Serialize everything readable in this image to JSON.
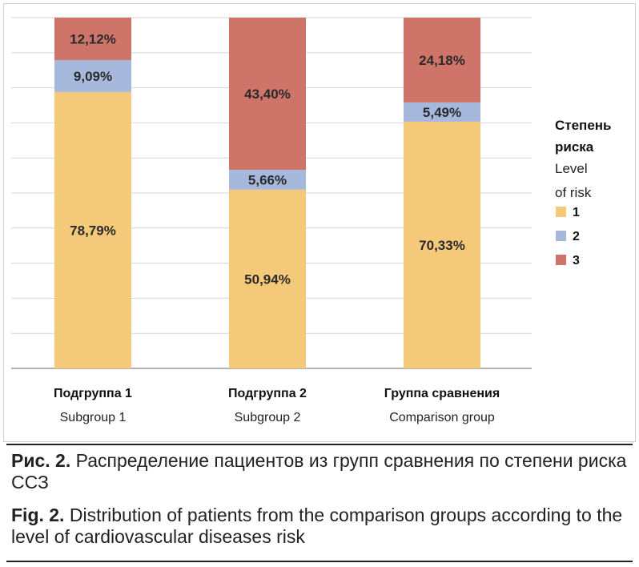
{
  "chart_data": {
    "type": "bar",
    "stacked": true,
    "categories_ru": [
      "Подгруппа 1",
      "Подгруппа 2",
      "Группа сравнения"
    ],
    "categories_en": [
      "Subgroup 1",
      "Subgroup 2",
      "Comparison group"
    ],
    "series": [
      {
        "name": "1",
        "color": "#f5c97a",
        "values": [
          78.79,
          50.94,
          70.33
        ],
        "labels": [
          "78,79%",
          "50,94%",
          "70,33%"
        ]
      },
      {
        "name": "2",
        "color": "#a6b9dc",
        "values": [
          9.09,
          5.66,
          5.49
        ],
        "labels": [
          "9,09%",
          "5,66%",
          "5,49%"
        ]
      },
      {
        "name": "3",
        "color": "#cf7468",
        "values": [
          12.12,
          43.4,
          24.18
        ],
        "labels": [
          "12,12%",
          "43,40%",
          "24,18%"
        ]
      }
    ],
    "ylim": [
      0,
      100
    ],
    "grid": true,
    "legend": {
      "title_ru_line1": "Степень",
      "title_ru_line2": "риска",
      "title_en_line1": "Level",
      "title_en_line2": "of risk",
      "position": "right"
    }
  },
  "caption": {
    "ru_prefix": "Рис. 2.",
    "ru_text": " Распределение пациентов из групп сравнения по степени риска ССЗ",
    "en_prefix": "Fig. 2.",
    "en_text": " Distribution of patients from the comparison groups according to the level of cardiovascular diseases risk"
  }
}
